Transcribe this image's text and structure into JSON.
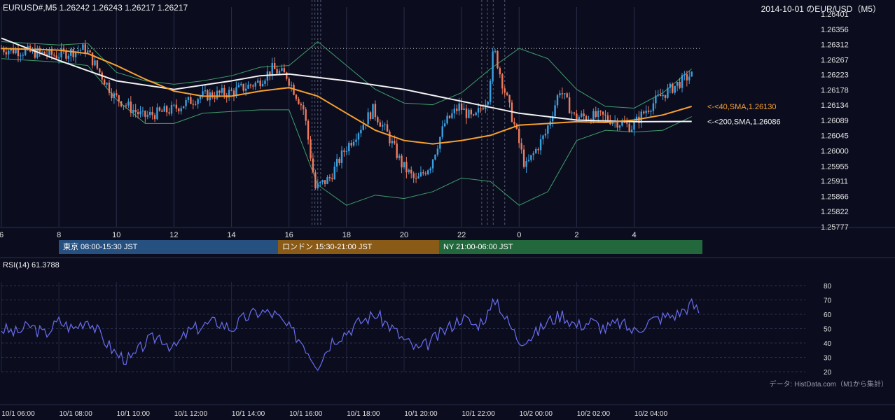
{
  "header": {
    "left": "EURUSD#,M5 1.26242 1.26243 1.26217 1.26217",
    "right": "2014-10-01 のEUR/USD（M5）"
  },
  "rsi_label": "RSI(14) 61.3788",
  "credit": "データ: HistData.com（M1から集計）",
  "sessions": [
    {
      "label": "東京 08:00-15:30 JST",
      "color": "#26507f"
    },
    {
      "label": "ロンドン 15:30-21:00 JST",
      "color": "#8a5a17"
    },
    {
      "label": "NY 21:00-06:00 JST",
      "color": "#23673d"
    }
  ],
  "colors": {
    "background": "#0b0d1f",
    "bull_candle": "#3aa0e0",
    "bear_candle": "#f07a5a",
    "sma40": "#f7a030",
    "sma200": "#f2f2f2",
    "bollinger": "#3f9d6a",
    "rsi": "#6a6cf0"
  },
  "chart_data": [
    {
      "type": "candlestick",
      "symbol": "EURUSD#",
      "timeframe": "M5",
      "ylim": [
        1.25777,
        1.26401
      ],
      "y_ticks": [
        "1.26401",
        "1.26356",
        "1.26312",
        "1.26267",
        "1.26223",
        "1.26178",
        "1.26134",
        "1.26089",
        "1.26045",
        "1.26000",
        "1.25955",
        "1.25911",
        "1.25866",
        "1.25822",
        "1.25777"
      ],
      "x_ticks": [
        "6",
        "8",
        "10",
        "12",
        "14",
        "16",
        "18",
        "20",
        "22",
        "0",
        "2",
        "4"
      ],
      "x_tick_hours": [
        6,
        8,
        10,
        12,
        14,
        16,
        18,
        20,
        22,
        24,
        26,
        28
      ],
      "x_range_hours": [
        6,
        30.3
      ],
      "ohlc_hourly": [
        {
          "t": 6.0,
          "price": 1.263
        },
        {
          "t": 7.0,
          "price": 1.2629
        },
        {
          "t": 8.0,
          "price": 1.2628
        },
        {
          "t": 9.0,
          "price": 1.263
        },
        {
          "t": 10.0,
          "price": 1.2616
        },
        {
          "t": 11.0,
          "price": 1.261
        },
        {
          "t": 12.0,
          "price": 1.2612
        },
        {
          "t": 13.0,
          "price": 1.2616
        },
        {
          "t": 14.0,
          "price": 1.2617
        },
        {
          "t": 15.0,
          "price": 1.262
        },
        {
          "t": 15.5,
          "price": 1.2624
        },
        {
          "t": 16.0,
          "price": 1.2622
        },
        {
          "t": 16.6,
          "price": 1.2612
        },
        {
          "t": 17.0,
          "price": 1.2589
        },
        {
          "t": 17.5,
          "price": 1.2592
        },
        {
          "t": 18.0,
          "price": 1.26
        },
        {
          "t": 19.0,
          "price": 1.2612
        },
        {
          "t": 19.5,
          "price": 1.2605
        },
        {
          "t": 20.0,
          "price": 1.2596
        },
        {
          "t": 20.5,
          "price": 1.2591
        },
        {
          "t": 21.0,
          "price": 1.2596
        },
        {
          "t": 21.5,
          "price": 1.2608
        },
        {
          "t": 22.0,
          "price": 1.2613
        },
        {
          "t": 22.5,
          "price": 1.2609
        },
        {
          "t": 23.0,
          "price": 1.2616
        },
        {
          "t": 23.2,
          "price": 1.263
        },
        {
          "t": 23.5,
          "price": 1.262
        },
        {
          "t": 24.0,
          "price": 1.2605
        },
        {
          "t": 24.3,
          "price": 1.2595
        },
        {
          "t": 25.0,
          "price": 1.2605
        },
        {
          "t": 25.5,
          "price": 1.2618
        },
        {
          "t": 26.0,
          "price": 1.261
        },
        {
          "t": 27.0,
          "price": 1.261
        },
        {
          "t": 28.0,
          "price": 1.2607
        },
        {
          "t": 28.5,
          "price": 1.2612
        },
        {
          "t": 29.0,
          "price": 1.2616
        },
        {
          "t": 30.0,
          "price": 1.2622
        }
      ],
      "sma40": {
        "label": "<-<40,SMA,1.26130",
        "points": [
          [
            6,
            1.263
          ],
          [
            8,
            1.26295
          ],
          [
            9,
            1.26285
          ],
          [
            10,
            1.2625
          ],
          [
            11,
            1.2621
          ],
          [
            12,
            1.26175
          ],
          [
            13,
            1.2616
          ],
          [
            14,
            1.2616
          ],
          [
            15,
            1.26175
          ],
          [
            16,
            1.26185
          ],
          [
            17,
            1.2616
          ],
          [
            18,
            1.2611
          ],
          [
            19,
            1.2606
          ],
          [
            20,
            1.2603
          ],
          [
            21,
            1.2602
          ],
          [
            22,
            1.2603
          ],
          [
            23,
            1.26045
          ],
          [
            24,
            1.26075
          ],
          [
            25,
            1.2608
          ],
          [
            26,
            1.26085
          ],
          [
            27,
            1.26083
          ],
          [
            28,
            1.2609
          ],
          [
            29,
            1.26105
          ],
          [
            30,
            1.2613
          ]
        ]
      },
      "sma200": {
        "label": "<-<200,SMA,1.26086",
        "points": [
          [
            6,
            1.2633
          ],
          [
            8,
            1.26265
          ],
          [
            10,
            1.26205
          ],
          [
            12,
            1.2618
          ],
          [
            14,
            1.26205
          ],
          [
            15,
            1.2622
          ],
          [
            16,
            1.26225
          ],
          [
            18,
            1.26205
          ],
          [
            20,
            1.2618
          ],
          [
            22,
            1.26145
          ],
          [
            24,
            1.2611
          ],
          [
            26,
            1.2609
          ],
          [
            28,
            1.26085
          ],
          [
            30,
            1.26086
          ]
        ]
      },
      "bollinger_upper": [
        [
          6,
          1.2632
        ],
        [
          8,
          1.2631
        ],
        [
          9,
          1.26315
        ],
        [
          10,
          1.2623
        ],
        [
          11,
          1.26205
        ],
        [
          12,
          1.26195
        ],
        [
          13,
          1.26205
        ],
        [
          14,
          1.2622
        ],
        [
          15,
          1.26245
        ],
        [
          16,
          1.2625
        ],
        [
          17,
          1.2632
        ],
        [
          18,
          1.2625
        ],
        [
          19,
          1.2618
        ],
        [
          20,
          1.2614
        ],
        [
          21,
          1.26135
        ],
        [
          22,
          1.2617
        ],
        [
          23,
          1.2624
        ],
        [
          24,
          1.263
        ],
        [
          25,
          1.2627
        ],
        [
          26,
          1.2618
        ],
        [
          27,
          1.2613
        ],
        [
          28,
          1.26125
        ],
        [
          29,
          1.2617
        ],
        [
          30,
          1.2624
        ]
      ],
      "bollinger_lower": [
        [
          6,
          1.2627
        ],
        [
          8,
          1.2626
        ],
        [
          9,
          1.2625
        ],
        [
          10,
          1.2615
        ],
        [
          11,
          1.2608
        ],
        [
          12,
          1.2608
        ],
        [
          13,
          1.2611
        ],
        [
          14,
          1.26115
        ],
        [
          15,
          1.2612
        ],
        [
          16,
          1.2612
        ],
        [
          17,
          1.259
        ],
        [
          18,
          1.2584
        ],
        [
          19,
          1.2587
        ],
        [
          20,
          1.2586
        ],
        [
          21,
          1.2588
        ],
        [
          22,
          1.2592
        ],
        [
          23,
          1.2591
        ],
        [
          24,
          1.2584
        ],
        [
          25,
          1.2588
        ],
        [
          26,
          1.2603
        ],
        [
          27,
          1.2606
        ],
        [
          28,
          1.26055
        ],
        [
          29,
          1.2606
        ],
        [
          30,
          1.261
        ]
      ],
      "guide_level": 1.263
    },
    {
      "type": "line",
      "name": "RSI(14)",
      "value": 61.3788,
      "ylim": [
        20,
        80
      ],
      "y_ticks": [
        "80",
        "70",
        "60",
        "50",
        "40",
        "30",
        "20"
      ],
      "x_labels": [
        "10/1 06:00",
        "10/1 08:00",
        "10/1 10:00",
        "10/1 12:00",
        "10/1 14:00",
        "10/1 16:00",
        "10/1 18:00",
        "10/1 20:00",
        "10/1 22:00",
        "10/2 00:00",
        "10/2 02:00",
        "10/2 04:00"
      ],
      "points": [
        [
          6,
          50
        ],
        [
          6.5,
          47
        ],
        [
          7,
          52
        ],
        [
          7.5,
          46
        ],
        [
          8,
          55
        ],
        [
          8.5,
          50
        ],
        [
          9,
          57
        ],
        [
          9.5,
          44
        ],
        [
          10,
          32
        ],
        [
          10.5,
          28
        ],
        [
          11,
          40
        ],
        [
          11.5,
          45
        ],
        [
          12,
          36
        ],
        [
          12.5,
          48
        ],
        [
          13,
          52
        ],
        [
          13.5,
          55
        ],
        [
          14,
          50
        ],
        [
          14.5,
          58
        ],
        [
          15,
          62
        ],
        [
          15.5,
          60
        ],
        [
          16,
          50
        ],
        [
          16.5,
          40
        ],
        [
          16.8,
          30
        ],
        [
          17,
          25
        ],
        [
          17.5,
          42
        ],
        [
          18,
          48
        ],
        [
          18.5,
          55
        ],
        [
          19,
          60
        ],
        [
          19.5,
          52
        ],
        [
          20,
          42
        ],
        [
          20.5,
          35
        ],
        [
          21,
          42
        ],
        [
          21.5,
          50
        ],
        [
          22,
          58
        ],
        [
          22.5,
          52
        ],
        [
          23,
          62
        ],
        [
          23.2,
          72
        ],
        [
          23.5,
          58
        ],
        [
          24,
          42
        ],
        [
          24.5,
          45
        ],
        [
          25,
          55
        ],
        [
          25.5,
          60
        ],
        [
          26,
          52
        ],
        [
          26.5,
          55
        ],
        [
          27,
          50
        ],
        [
          27.5,
          54
        ],
        [
          28,
          48
        ],
        [
          28.5,
          55
        ],
        [
          29,
          58
        ],
        [
          29.5,
          60
        ],
        [
          30,
          67
        ],
        [
          30.3,
          61.4
        ]
      ]
    }
  ]
}
